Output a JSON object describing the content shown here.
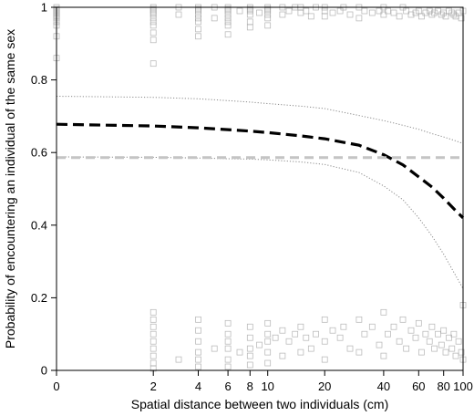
{
  "chart_data": {
    "type": "scatter",
    "xlabel": "Spatial distance between two individuals (cm)",
    "ylabel": "Probability of encountering an individual of the same sex",
    "x_scale": "log1p",
    "xlim": [
      0,
      100
    ],
    "ylim": [
      0,
      1
    ],
    "x_ticks": [
      0,
      2,
      4,
      6,
      8,
      10,
      20,
      40,
      60,
      80,
      100
    ],
    "x_tick_labels": [
      "0",
      "2",
      "4",
      "6",
      "8",
      "10",
      "20",
      "40",
      "60",
      "80",
      "100"
    ],
    "y_ticks": [
      0,
      0.2,
      0.4,
      0.6,
      0.8,
      1
    ],
    "y_tick_labels": [
      "0",
      "0.2",
      "0.4",
      "0.6",
      "0.8",
      "1"
    ],
    "grid": false,
    "colors": {
      "points": "#9a9a9a",
      "fit": "#000000",
      "ci": "#8a8a8a",
      "reference": "#c4c4c4"
    },
    "series": [
      {
        "type": "line",
        "style": "dashed-bold",
        "x": [
          0,
          2,
          4,
          6,
          8,
          10,
          15,
          20,
          30,
          40,
          50,
          60,
          70,
          80,
          90,
          100
        ],
        "y": [
          0.678,
          0.673,
          0.668,
          0.663,
          0.659,
          0.655,
          0.646,
          0.638,
          0.62,
          0.594,
          0.566,
          0.533,
          0.505,
          0.474,
          0.445,
          0.42
        ]
      },
      {
        "type": "line",
        "style": "dotted",
        "x": [
          0,
          2,
          4,
          6,
          8,
          10,
          15,
          20,
          30,
          40,
          50,
          60,
          70,
          80,
          90,
          100
        ],
        "y": [
          0.755,
          0.752,
          0.748,
          0.743,
          0.739,
          0.735,
          0.728,
          0.721,
          0.702,
          0.688,
          0.675,
          0.664,
          0.652,
          0.643,
          0.634,
          0.625
        ]
      },
      {
        "type": "line",
        "style": "dotted",
        "x": [
          0,
          2,
          4,
          6,
          8,
          10,
          15,
          20,
          30,
          40,
          50,
          60,
          70,
          80,
          90,
          100
        ],
        "y": [
          0.588,
          0.587,
          0.585,
          0.583,
          0.582,
          0.58,
          0.574,
          0.567,
          0.545,
          0.508,
          0.47,
          0.42,
          0.37,
          0.32,
          0.27,
          0.225
        ]
      },
      {
        "type": "hline",
        "style": "dashed",
        "y": 0.586
      },
      {
        "type": "points",
        "marker": "open-square",
        "x": [
          0,
          0,
          0,
          0,
          0,
          0,
          0,
          0,
          0,
          0,
          0,
          2,
          2,
          2,
          2,
          2,
          2,
          2,
          2,
          2,
          2,
          2,
          3,
          3,
          4,
          4,
          4,
          4,
          4,
          4,
          4,
          4,
          5,
          5,
          6,
          6,
          6,
          6,
          6,
          6,
          6,
          6,
          7,
          8,
          8,
          8,
          8,
          8,
          8,
          9,
          10,
          10,
          10,
          10,
          10,
          10,
          12,
          12,
          13,
          14,
          15,
          15,
          16,
          17,
          18,
          20,
          20,
          20,
          22,
          24,
          25,
          27,
          30,
          30,
          32,
          35,
          38,
          40,
          40,
          42,
          45,
          48,
          50,
          52,
          55,
          58,
          60,
          62,
          65,
          68,
          70,
          72,
          75,
          78,
          80,
          82,
          85,
          88,
          90,
          92,
          95,
          98,
          100
        ],
        "y": [
          1,
          0.995,
          0.99,
          0.985,
          0.98,
          0.975,
          0.97,
          0.96,
          0.95,
          0.92,
          0.86,
          1,
          0.995,
          0.99,
          0.985,
          0.98,
          0.97,
          0.96,
          0.95,
          0.93,
          0.91,
          0.845,
          1,
          0.98,
          1,
          0.995,
          0.99,
          0.98,
          0.97,
          0.96,
          0.94,
          0.92,
          1,
          0.97,
          1,
          0.995,
          0.99,
          0.98,
          0.97,
          0.96,
          0.95,
          0.925,
          0.99,
          1,
          0.995,
          0.99,
          0.98,
          0.96,
          0.945,
          0.985,
          1,
          0.995,
          0.99,
          0.98,
          0.97,
          0.95,
          1,
          0.98,
          0.99,
          1,
          1,
          0.985,
          0.99,
          0.975,
          1,
          1,
          0.99,
          0.975,
          0.985,
          0.99,
          1,
          0.98,
          1,
          0.97,
          0.99,
          0.985,
          0.99,
          1,
          0.98,
          0.99,
          0.985,
          0.975,
          1,
          0.99,
          0.98,
          0.985,
          0.99,
          0.975,
          0.985,
          0.99,
          0.98,
          0.985,
          0.99,
          0.98,
          0.985,
          0.975,
          0.99,
          0.985,
          0.98,
          0.975,
          0.985,
          0.97,
          0.99
        ]
      },
      {
        "type": "points",
        "marker": "open-square",
        "x": [
          2,
          2,
          2,
          2,
          2,
          2,
          2,
          2,
          2,
          3,
          4,
          4,
          4,
          4,
          4,
          4,
          5,
          6,
          6,
          6,
          6,
          6,
          6,
          7,
          8,
          8,
          8,
          8,
          8,
          9,
          10,
          10,
          10,
          10,
          10,
          11,
          12,
          12,
          13,
          14,
          15,
          15,
          16,
          17,
          18,
          20,
          20,
          20,
          22,
          24,
          25,
          27,
          30,
          30,
          32,
          35,
          38,
          40,
          40,
          42,
          45,
          48,
          50,
          52,
          55,
          58,
          60,
          62,
          65,
          68,
          70,
          72,
          75,
          78,
          80,
          82,
          85,
          88,
          90,
          92,
          95,
          98,
          100,
          100
        ],
        "y": [
          0.16,
          0.14,
          0.12,
          0.1,
          0.08,
          0.06,
          0.04,
          0.02,
          0.005,
          0.03,
          0.14,
          0.11,
          0.08,
          0.05,
          0.03,
          0.01,
          0.06,
          0.13,
          0.1,
          0.08,
          0.06,
          0.03,
          0.01,
          0.05,
          0.12,
          0.09,
          0.06,
          0.04,
          0.015,
          0.07,
          0.13,
          0.1,
          0.08,
          0.05,
          0.02,
          0.09,
          0.11,
          0.04,
          0.08,
          0.1,
          0.12,
          0.05,
          0.09,
          0.06,
          0.1,
          0.14,
          0.08,
          0.03,
          0.11,
          0.09,
          0.12,
          0.06,
          0.14,
          0.05,
          0.1,
          0.12,
          0.07,
          0.16,
          0.04,
          0.1,
          0.12,
          0.08,
          0.14,
          0.06,
          0.11,
          0.09,
          0.13,
          0.05,
          0.1,
          0.08,
          0.12,
          0.06,
          0.1,
          0.07,
          0.11,
          0.05,
          0.09,
          0.06,
          0.1,
          0.04,
          0.08,
          0.05,
          0.18,
          0.03
        ]
      }
    ]
  }
}
